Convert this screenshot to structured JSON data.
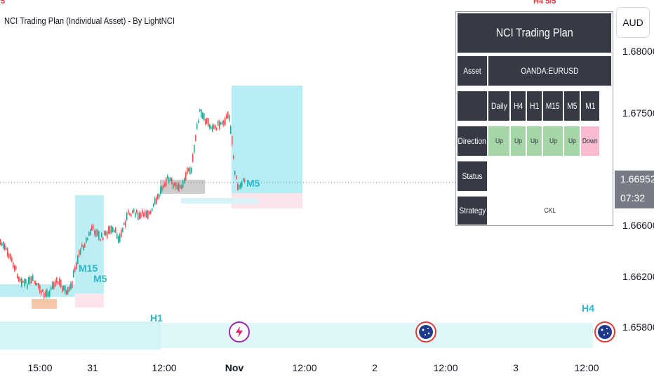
{
  "chart_title": "NCI Trading Plan (Individual Asset) - By LightNCI",
  "clipped_top_left": "/5",
  "clipped_top_right": "H4 5/5",
  "currency_button": "AUD",
  "price_scale": [
    "1.68000",
    "1.67500",
    "1.66600",
    "1.66200",
    "1.65800"
  ],
  "current_price": {
    "value": "1.66952",
    "countdown": "07:32"
  },
  "time_axis": [
    "15:00",
    "31",
    "12:00",
    "Nov",
    "12:00",
    "2",
    "12:00",
    "3",
    "12:00"
  ],
  "zone_labels": {
    "m15": "M15",
    "m5_left": "M5",
    "m5_right": "M5",
    "h1": "H1",
    "h4": "H4"
  },
  "plan_table": {
    "title": "NCI Trading Plan",
    "asset_label": "Asset",
    "asset_value": "OANDA:EURUSD",
    "timeframes": [
      "Daily",
      "H4",
      "H1",
      "M15",
      "M5",
      "M1"
    ],
    "direction_label": "Direction",
    "directions": [
      "Up",
      "Up",
      "Up",
      "Up",
      "Up",
      "Down"
    ],
    "status_label": "Status",
    "strategy_label": "Strategy",
    "strategy_value": "CKL",
    "colors": {
      "header": "#363a45",
      "up": "#a5d6a7",
      "down": "#f8bbd0"
    }
  },
  "icons": [
    "lightning-event-icon",
    "flag-event-icon",
    "flag-event-icon"
  ],
  "colors": {
    "bull": "#26a69a",
    "bear": "#ef5350",
    "zone": "#b2ebf2",
    "zone_light": "#e0f7fa",
    "accent": "#2ab8c8"
  }
}
